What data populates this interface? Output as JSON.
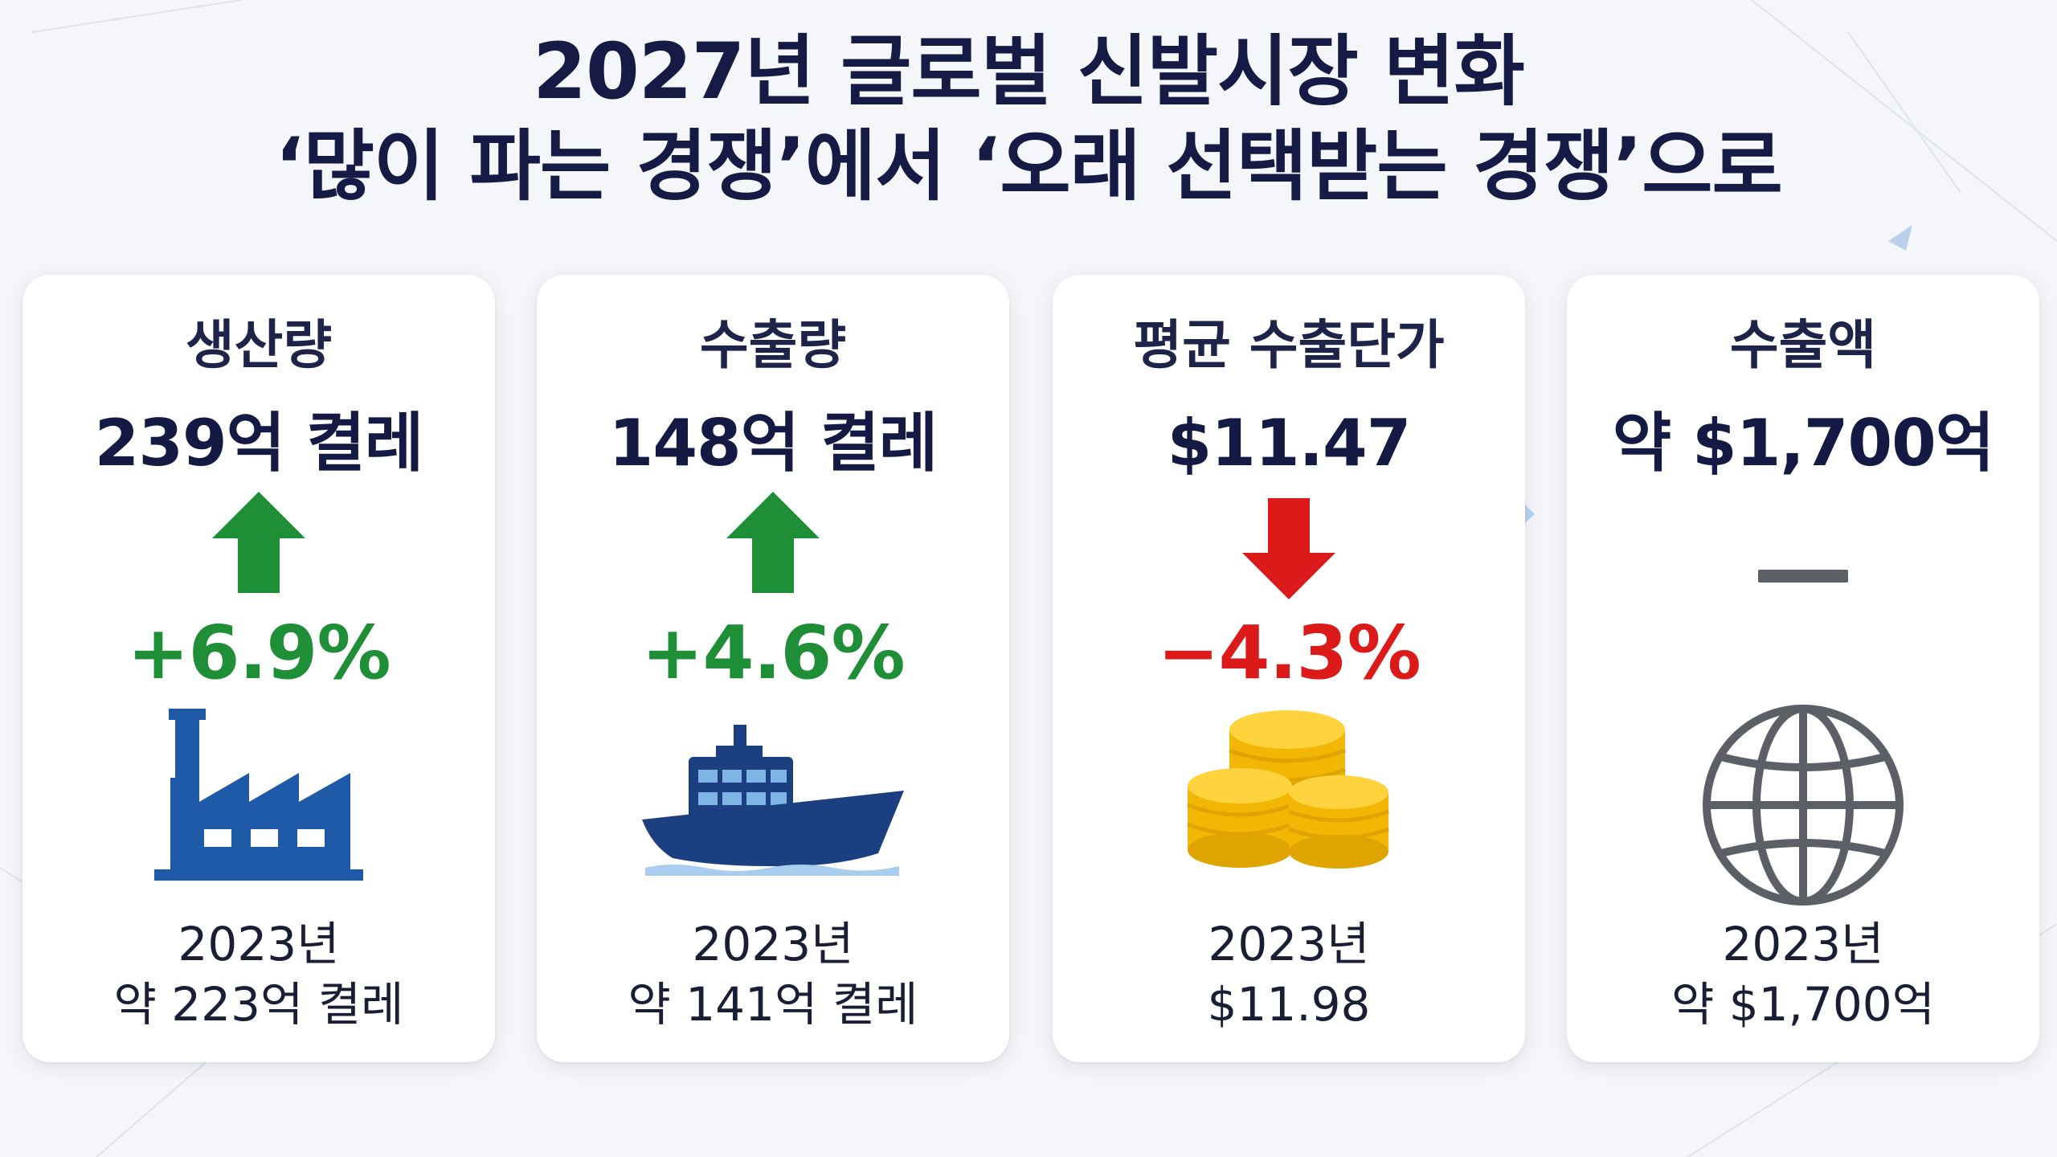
{
  "title": {
    "line1": "2027년 글로벌 신발시장 변화",
    "line2": "‘많이 파는 경쟁’에서 ‘오래 선택받는 경쟁’으로"
  },
  "colors": {
    "title": "#151b45",
    "increase": "#1f8f37",
    "decrease": "#dc1a1a",
    "neutral": "#5c5f66",
    "factory": "#1f5aa8",
    "ship": "#1c3f82",
    "coins": "#f2b705",
    "globe": "#5c5f66"
  },
  "cards": [
    {
      "title": "생산량",
      "value": "239억 켤레",
      "trend": "up",
      "change": "+6.9%",
      "icon": "factory-icon",
      "base_year": "2023년",
      "base_value": "약 223억 켤레"
    },
    {
      "title": "수출량",
      "value": "148억 켤레",
      "trend": "up",
      "change": "+4.6%",
      "icon": "cargo-ship-icon",
      "base_year": "2023년",
      "base_value": "약 141억 켤레"
    },
    {
      "title": "평균 수출단가",
      "value": "$11.47",
      "trend": "down",
      "change": "−4.3%",
      "icon": "coins-icon",
      "base_year": "2023년",
      "base_value": "$11.98"
    },
    {
      "title": "수출액",
      "value": "약 $1,700억",
      "trend": "flat",
      "change": "",
      "icon": "globe-icon",
      "base_year": "2023년",
      "base_value": "약 $1,700억"
    }
  ]
}
